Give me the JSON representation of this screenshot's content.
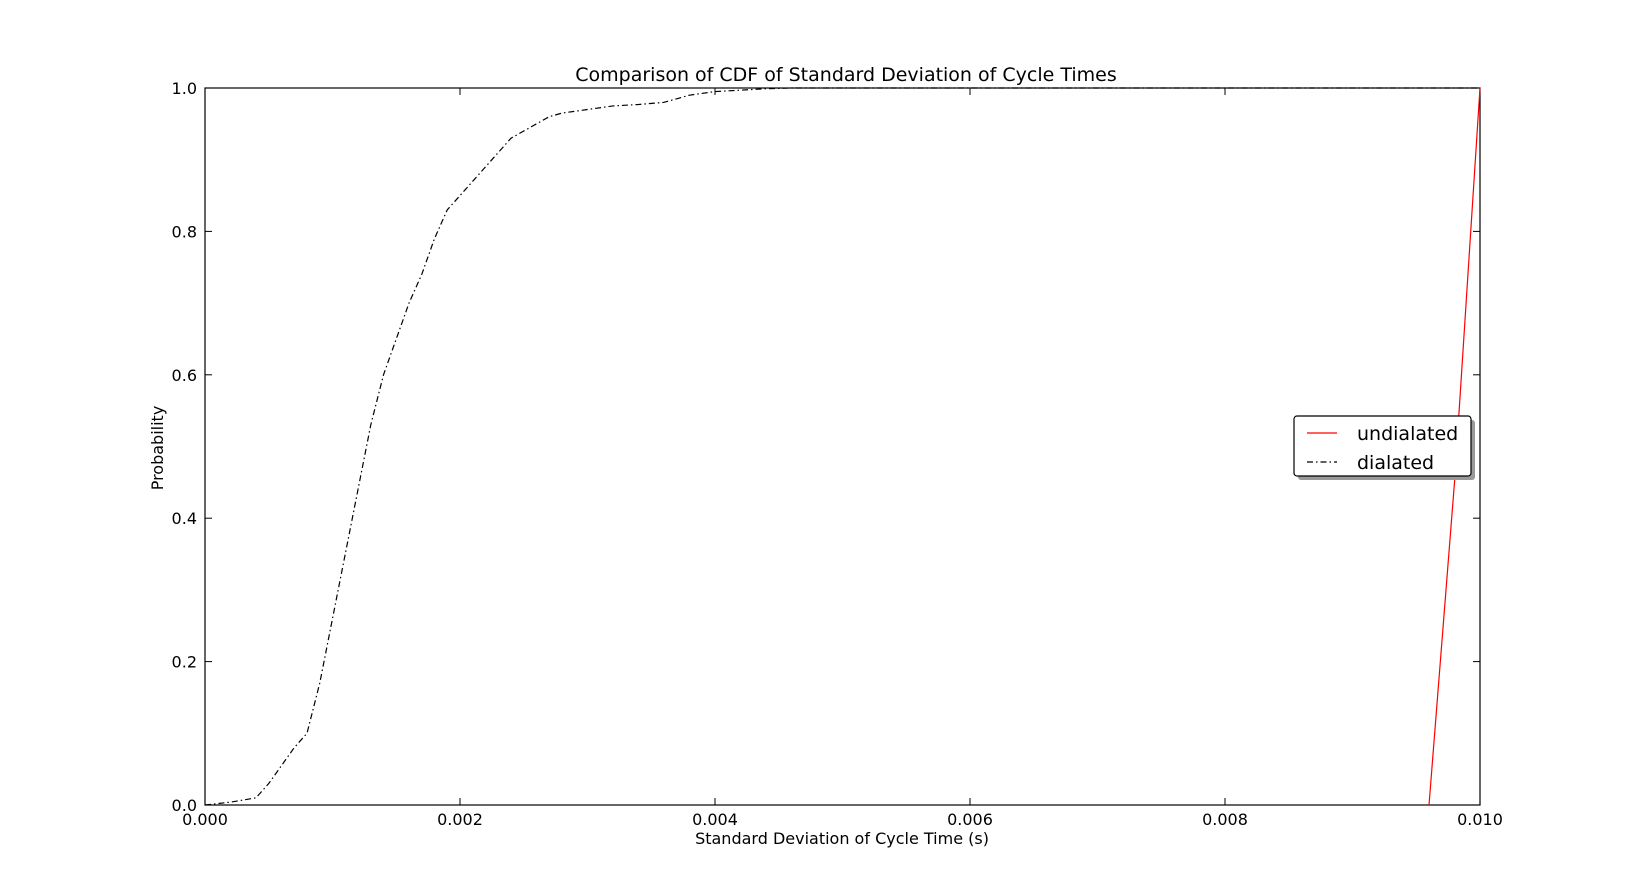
{
  "chart_data": {
    "type": "line",
    "title": "Comparison of CDF of Standard Deviation of Cycle Times",
    "xlabel": "Standard Deviation of Cycle Time (s)",
    "ylabel": "Probability",
    "xlim": [
      0.0,
      0.01
    ],
    "ylim": [
      0.0,
      1.0
    ],
    "xticks": [
      "0.000",
      "0.002",
      "0.004",
      "0.006",
      "0.008",
      "0.010"
    ],
    "yticks": [
      "0.0",
      "0.2",
      "0.4",
      "0.6",
      "0.8",
      "1.0"
    ],
    "grid": false,
    "legend_position": "center-right",
    "series": [
      {
        "name": "undialated",
        "color": "#ff0000",
        "linestyle": "solid",
        "x": [
          0.0096,
          0.0098,
          0.01
        ],
        "y": [
          0.0,
          0.45,
          1.0
        ]
      },
      {
        "name": "dialated",
        "color": "#000000",
        "linestyle": "dashdot",
        "x": [
          0.0,
          0.0001,
          0.0002,
          0.0003,
          0.0004,
          0.0005,
          0.0006,
          0.0007,
          0.0008,
          0.0009,
          0.001,
          0.0011,
          0.0012,
          0.0013,
          0.0014,
          0.0015,
          0.0016,
          0.0017,
          0.0018,
          0.0019,
          0.002,
          0.0021,
          0.0022,
          0.0023,
          0.0024,
          0.0025,
          0.0026,
          0.0027,
          0.0028,
          0.003,
          0.0032,
          0.0034,
          0.0036,
          0.0038,
          0.004,
          0.0042,
          0.0044,
          0.0046,
          0.005,
          0.006,
          0.007,
          0.008,
          0.009,
          0.01
        ],
        "y": [
          0.0,
          0.002,
          0.004,
          0.007,
          0.01,
          0.03,
          0.055,
          0.08,
          0.1,
          0.17,
          0.26,
          0.35,
          0.44,
          0.53,
          0.6,
          0.65,
          0.7,
          0.74,
          0.79,
          0.83,
          0.85,
          0.87,
          0.89,
          0.91,
          0.93,
          0.94,
          0.95,
          0.96,
          0.965,
          0.97,
          0.975,
          0.977,
          0.98,
          0.99,
          0.995,
          0.997,
          0.999,
          1.0,
          1.0,
          1.0,
          1.0,
          1.0,
          1.0,
          1.0
        ]
      }
    ]
  }
}
